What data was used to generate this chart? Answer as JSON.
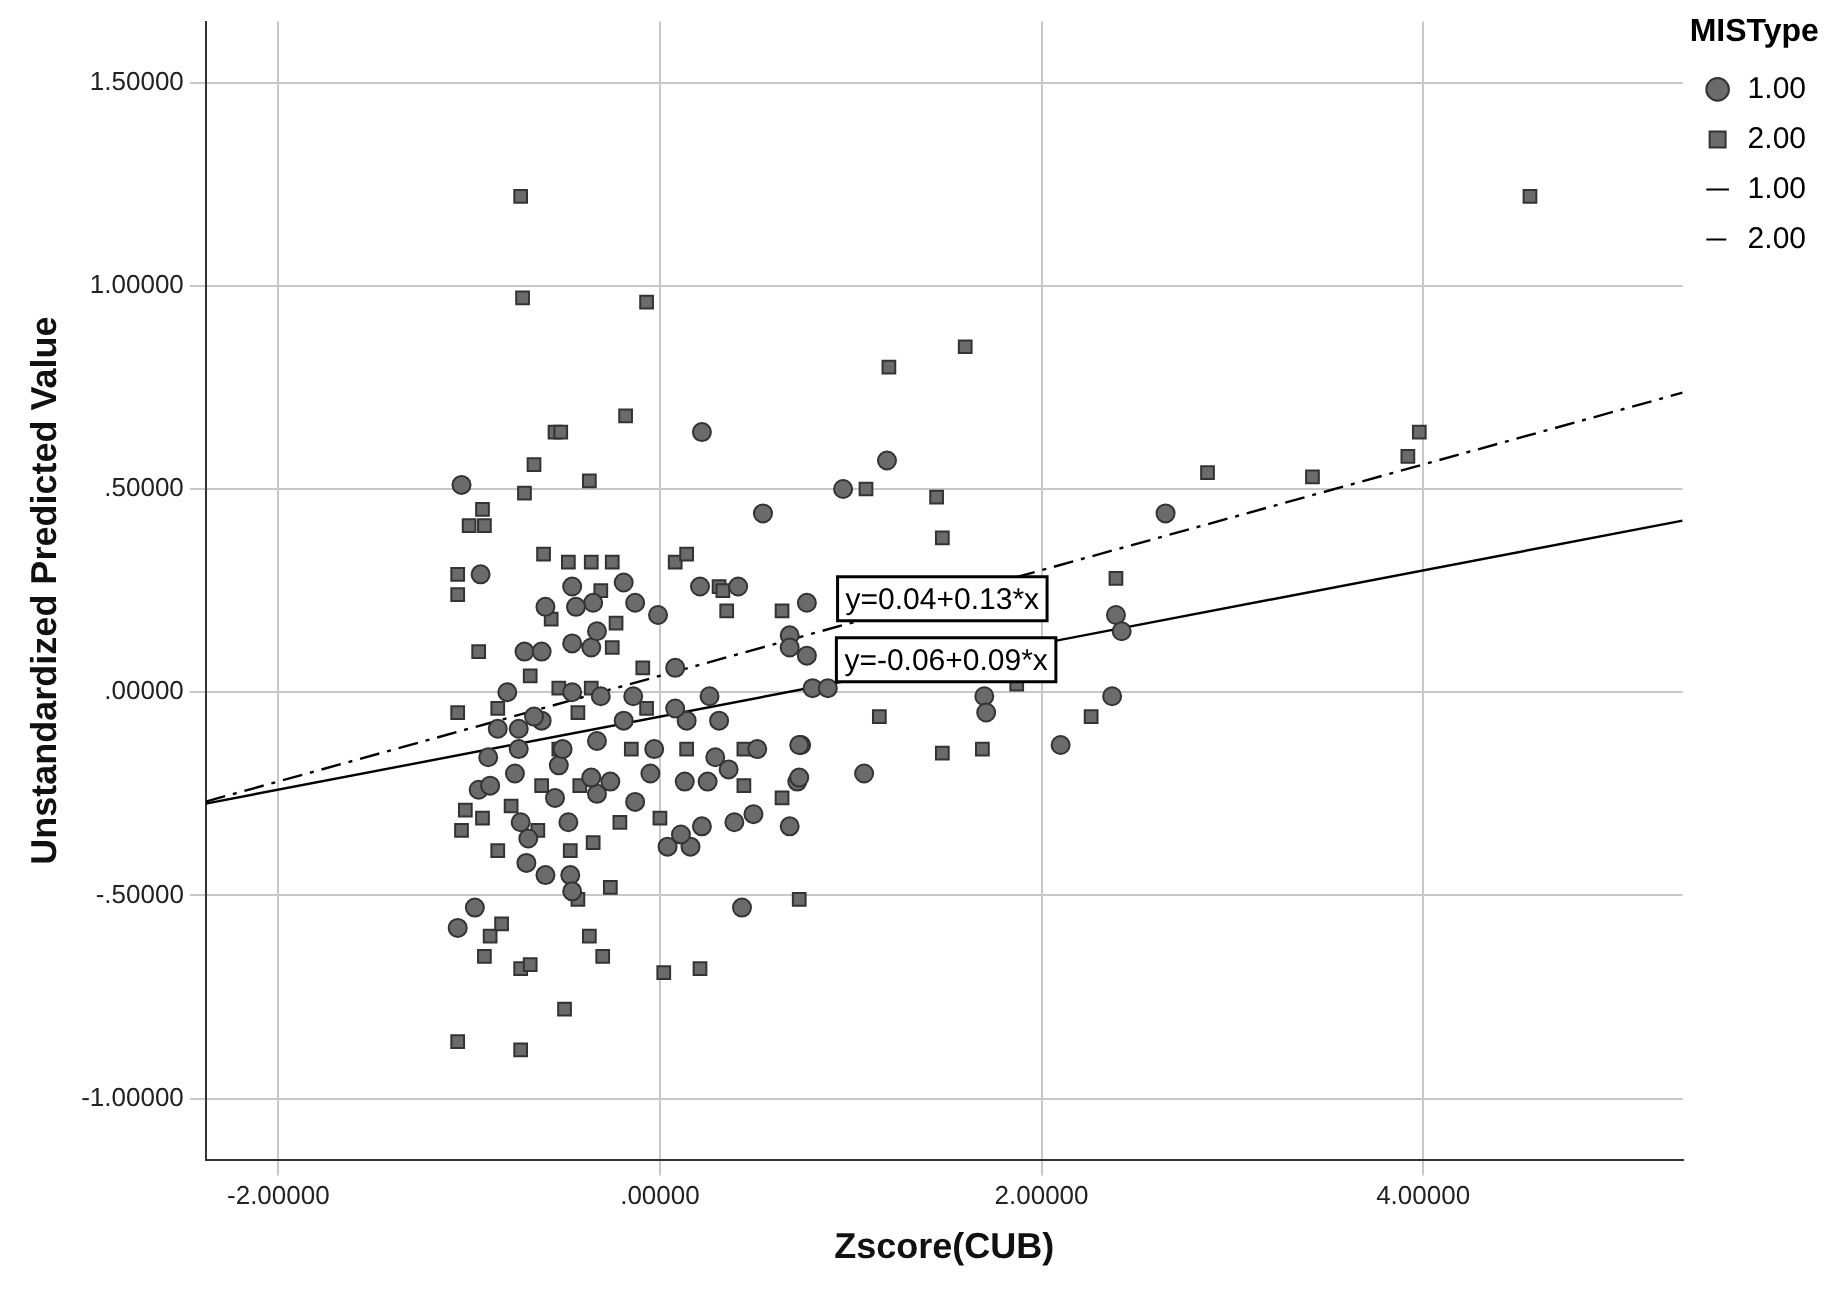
{
  "chart_data": {
    "type": "scatter",
    "xlabel": "Zscore(CUB)",
    "ylabel": "Unstandardized Predicted Value",
    "legend_title": "MISType",
    "legend": "top right",
    "grid": true,
    "xlim": [
      -2.38,
      5.36
    ],
    "ylim": [
      -1.15,
      1.65
    ],
    "xticks": [
      {
        "value": -2,
        "label": "-2.00000"
      },
      {
        "value": 0,
        "label": ".00000"
      },
      {
        "value": 2,
        "label": "2.00000"
      },
      {
        "value": 4,
        "label": "4.00000"
      }
    ],
    "yticks": [
      {
        "value": -1,
        "label": "-1.00000"
      },
      {
        "value": -0.5,
        "label": "-.50000"
      },
      {
        "value": 0,
        "label": ".00000"
      },
      {
        "value": 0.5,
        "label": ".50000"
      },
      {
        "value": 1,
        "label": "1.00000"
      },
      {
        "value": 1.5,
        "label": "1.50000"
      }
    ],
    "annotations": [
      {
        "text": "y=0.04+0.13*x",
        "x": 1.48,
        "y": 0.23
      },
      {
        "text": "y=-0.06+0.09*x",
        "x": 1.5,
        "y": 0.08
      }
    ],
    "series": [
      {
        "name": "1.00",
        "type": "scatter",
        "marker": "circle",
        "color": "#6b6b6b",
        "x": [
          -1.04,
          0.22,
          0.54,
          -0.94,
          1.19,
          0.96,
          2.65,
          0.77,
          0.68,
          0.77,
          0.8,
          0.88,
          1.7,
          1.71,
          2.39,
          2.42,
          2.37,
          2.1,
          1.07,
          0.74,
          0.72,
          -0.97,
          -1.06,
          0.43,
          -0.6,
          -0.7,
          -0.47,
          -0.46,
          0.04,
          0.16,
          0.11,
          0.22,
          0.39,
          0.49,
          0.68,
          -0.48,
          -0.69,
          -0.73,
          -0.13,
          -0.55,
          -0.33,
          -0.26,
          -0.36,
          -0.05,
          0.13,
          0.25,
          0.29,
          0.36,
          0.73,
          -0.95,
          -0.89,
          -0.76,
          -0.53,
          -0.33,
          -0.03,
          0.51,
          0.73,
          -0.9,
          -0.74,
          -0.51,
          0.31,
          0.14,
          -0.62,
          -0.74,
          -0.85,
          -0.19,
          -0.14,
          0.08,
          0.26,
          0.08,
          -0.31,
          -0.46,
          -0.66,
          -0.8,
          -0.71,
          -0.62,
          -0.36,
          0.68,
          -0.19,
          -0.46,
          -0.13,
          -0.35,
          -0.44,
          -0.01,
          -0.33,
          -0.46,
          -0.6,
          0.21,
          0.41
        ],
        "values": [
          0.51,
          0.64,
          0.44,
          0.29,
          0.57,
          0.5,
          0.44,
          0.22,
          0.14,
          0.09,
          0.01,
          0.01,
          -0.01,
          -0.05,
          0.19,
          0.15,
          -0.01,
          -0.13,
          -0.2,
          -0.13,
          -0.22,
          -0.53,
          -0.58,
          -0.53,
          -0.45,
          -0.42,
          -0.45,
          -0.49,
          -0.38,
          -0.38,
          -0.35,
          -0.33,
          -0.32,
          -0.3,
          -0.33,
          -0.32,
          -0.36,
          -0.32,
          -0.27,
          -0.26,
          -0.25,
          -0.22,
          -0.21,
          -0.2,
          -0.22,
          -0.22,
          -0.16,
          -0.19,
          -0.21,
          -0.24,
          -0.23,
          -0.2,
          -0.18,
          -0.12,
          -0.14,
          -0.14,
          -0.13,
          -0.16,
          -0.14,
          -0.14,
          -0.07,
          -0.07,
          -0.07,
          -0.09,
          -0.09,
          -0.07,
          -0.01,
          -0.04,
          -0.01,
          0.06,
          -0.01,
          0,
          -0.06,
          0,
          0.1,
          0.1,
          0.11,
          0.11,
          0.27,
          0.26,
          0.22,
          0.22,
          0.21,
          0.19,
          0.15,
          0.12,
          0.21,
          0.26,
          0.26
        ]
      },
      {
        "name": "2.00",
        "type": "scatter",
        "marker": "square",
        "color": "#6b6b6b",
        "x": [
          -0.73,
          -0.72,
          -0.07,
          -0.18,
          -0.55,
          -0.52,
          -0.66,
          -0.71,
          -0.37,
          -0.93,
          -1.0,
          -0.92,
          -0.61,
          -0.48,
          -1.06,
          -1.06,
          -0.36,
          -0.25,
          0.08,
          0.14,
          0.31,
          1.08,
          1.2,
          1.6,
          1.45,
          1.48,
          2.39,
          0.64,
          2.87,
          3.42,
          3.92,
          3.98,
          4.56,
          1.15,
          1.48,
          1.69,
          2.26,
          0.64,
          1.87,
          -1.06,
          -0.73,
          -0.5,
          0.02,
          0.21,
          -0.92,
          -0.73,
          -0.68,
          -0.89,
          -0.83,
          -0.37,
          -0.3,
          -0.43,
          -0.26,
          0.73,
          -0.85,
          -0.47,
          -0.35,
          -1.04,
          -1.02,
          -0.93,
          -0.64,
          -0.21,
          0,
          -0.78,
          -0.62,
          -0.42,
          0.44,
          -0.53,
          -0.15,
          0.14,
          0.44,
          -1.06,
          -0.85,
          -0.43,
          -0.07,
          -0.53,
          -0.36,
          -0.09,
          -0.25,
          -0.95,
          -0.68,
          0.33,
          0.35,
          -0.57,
          -0.23,
          -0.31
        ],
        "values": [
          1.22,
          0.97,
          0.96,
          0.68,
          0.64,
          0.64,
          0.56,
          0.49,
          0.52,
          0.45,
          0.41,
          0.41,
          0.34,
          0.32,
          0.29,
          0.24,
          0.32,
          0.32,
          0.32,
          0.34,
          0.26,
          0.5,
          0.8,
          0.85,
          0.48,
          0.38,
          0.28,
          0.2,
          0.54,
          0.53,
          0.58,
          0.64,
          1.22,
          -0.06,
          -0.15,
          -0.14,
          -0.06,
          -0.26,
          0.02,
          -0.86,
          -0.88,
          -0.78,
          -0.69,
          -0.68,
          -0.65,
          -0.68,
          -0.67,
          -0.6,
          -0.57,
          -0.6,
          -0.65,
          -0.51,
          -0.48,
          -0.51,
          -0.39,
          -0.39,
          -0.37,
          -0.34,
          -0.29,
          -0.31,
          -0.34,
          -0.32,
          -0.31,
          -0.28,
          -0.23,
          -0.23,
          -0.23,
          -0.14,
          -0.14,
          -0.14,
          -0.14,
          -0.05,
          -0.04,
          -0.05,
          -0.04,
          0.01,
          0.01,
          0.06,
          0.11,
          0.1,
          0.04,
          0.25,
          0.2,
          0.18,
          0.17,
          0.25
        ]
      },
      {
        "name": "1.00",
        "type": "line",
        "marker": "none",
        "line_style": "solid",
        "color": "#000000",
        "x": [
          -2.38,
          5.36
        ],
        "values": [
          -0.274,
          0.422
        ]
      },
      {
        "name": "2.00",
        "type": "line",
        "marker": "none",
        "line_style": "dashed",
        "color": "#000000",
        "x": [
          -2.38,
          5.36
        ],
        "values": [
          -0.269,
          0.737
        ]
      }
    ]
  }
}
